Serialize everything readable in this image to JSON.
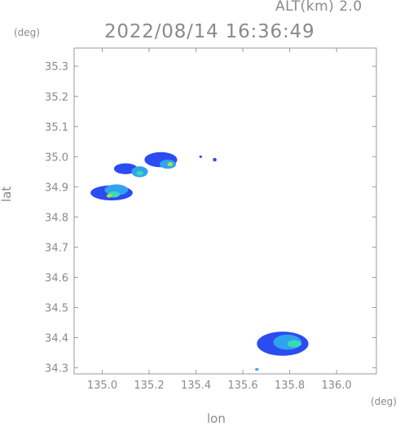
{
  "header": {
    "altitude_label": "ALT(km) 2.0",
    "timestamp": "2022/08/14 16:36:49"
  },
  "chart_data": {
    "type": "heatmap",
    "title": "2022/08/14 16:36:49",
    "subtitle": "ALT(km) 2.0",
    "xlabel": "lon",
    "ylabel": "lat",
    "x_unit": "(deg)",
    "y_unit": "(deg)",
    "xlim": [
      134.88,
      136.17
    ],
    "ylim": [
      34.28,
      35.36
    ],
    "grid": false,
    "x_ticks": [
      135.0,
      135.2,
      135.4,
      135.6,
      135.8,
      136.0
    ],
    "x_tick_labels": [
      "135.0",
      "135.2",
      "135.4",
      "135.6",
      "135.8",
      "136.0"
    ],
    "y_ticks": [
      34.3,
      34.4,
      34.5,
      34.6,
      34.7,
      34.8,
      34.9,
      35.0,
      35.1,
      35.2,
      35.3
    ],
    "y_tick_labels": [
      "34.3",
      "34.4",
      "34.5",
      "34.6",
      "34.7",
      "34.8",
      "34.9",
      "35.0",
      "35.1",
      "35.2",
      "35.3"
    ],
    "color_levels": {
      "low": "#2b4cf0",
      "mid": "#2fa3ee",
      "high": "#3ad9b8",
      "peak": "#a8e04a"
    },
    "echo_regions": [
      {
        "lon": 135.04,
        "lat": 34.88,
        "rlon": 0.09,
        "rlat": 0.025,
        "level": "low"
      },
      {
        "lon": 135.06,
        "lat": 34.89,
        "rlon": 0.05,
        "rlat": 0.018,
        "level": "mid"
      },
      {
        "lon": 135.05,
        "lat": 34.875,
        "rlon": 0.025,
        "rlat": 0.01,
        "level": "high"
      },
      {
        "lon": 135.03,
        "lat": 34.87,
        "rlon": 0.012,
        "rlat": 0.006,
        "level": "peak"
      },
      {
        "lon": 135.1,
        "lat": 34.96,
        "rlon": 0.05,
        "rlat": 0.018,
        "level": "low"
      },
      {
        "lon": 135.16,
        "lat": 34.95,
        "rlon": 0.035,
        "rlat": 0.018,
        "level": "mid"
      },
      {
        "lon": 135.16,
        "lat": 34.945,
        "rlon": 0.015,
        "rlat": 0.008,
        "level": "high"
      },
      {
        "lon": 135.25,
        "lat": 34.99,
        "rlon": 0.07,
        "rlat": 0.025,
        "level": "low"
      },
      {
        "lon": 135.28,
        "lat": 34.975,
        "rlon": 0.035,
        "rlat": 0.015,
        "level": "mid"
      },
      {
        "lon": 135.29,
        "lat": 34.975,
        "rlon": 0.012,
        "rlat": 0.007,
        "level": "peak"
      },
      {
        "lon": 135.42,
        "lat": 35.0,
        "rlon": 0.006,
        "rlat": 0.004,
        "level": "low"
      },
      {
        "lon": 135.48,
        "lat": 34.99,
        "rlon": 0.008,
        "rlat": 0.006,
        "level": "low"
      },
      {
        "lon": 135.77,
        "lat": 34.38,
        "rlon": 0.11,
        "rlat": 0.04,
        "level": "low"
      },
      {
        "lon": 135.79,
        "lat": 34.385,
        "rlon": 0.06,
        "rlat": 0.025,
        "level": "mid"
      },
      {
        "lon": 135.82,
        "lat": 34.38,
        "rlon": 0.03,
        "rlat": 0.012,
        "level": "high"
      },
      {
        "lon": 135.66,
        "lat": 34.295,
        "rlon": 0.008,
        "rlat": 0.004,
        "level": "mid"
      }
    ]
  }
}
